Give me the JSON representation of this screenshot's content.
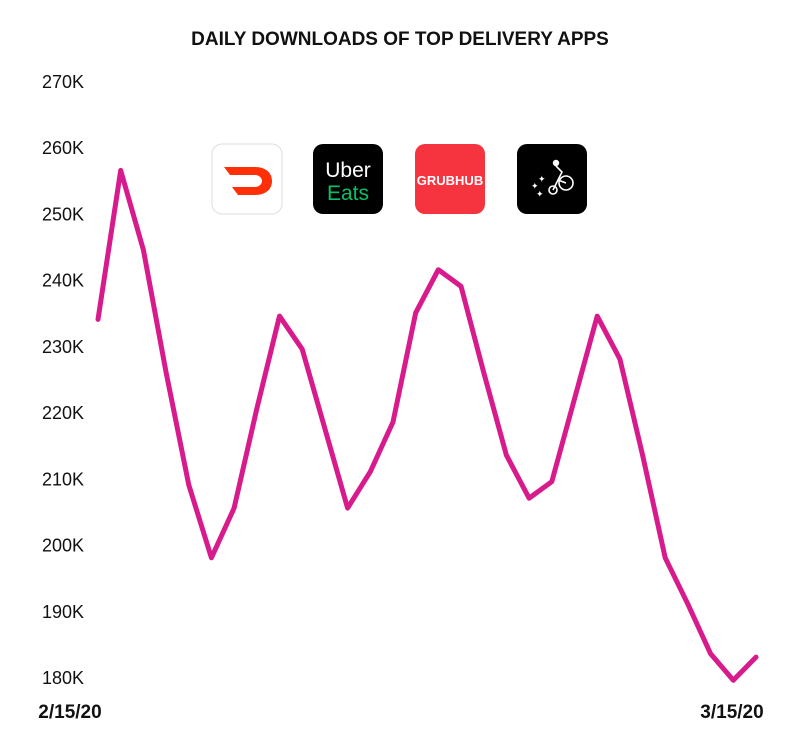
{
  "chart_data": {
    "type": "line",
    "title": "DAILY DOWNLOADS OF TOP DELIVERY APPS",
    "xlabel": "",
    "ylabel": "",
    "x_tick_labels": [
      "2/15/20",
      "3/15/20"
    ],
    "x_start": "2/15/20",
    "x_end": "3/15/20",
    "y_tick_labels": [
      "270K",
      "260K",
      "250K",
      "240K",
      "230K",
      "220K",
      "210K",
      "200K",
      "190K",
      "180K"
    ],
    "y_ticks": [
      270000,
      260000,
      250000,
      240000,
      230000,
      220000,
      210000,
      200000,
      190000,
      180000
    ],
    "ylim": [
      180000,
      270000
    ],
    "grid": false,
    "series": [
      {
        "color": "#d81b8c",
        "values": [
          234000,
          256500,
          244500,
          226000,
          209000,
          198000,
          205500,
          220500,
          234500,
          229500,
          217500,
          205500,
          211000,
          218500,
          235000,
          241500,
          239000,
          226000,
          213500,
          207000,
          209500,
          222000,
          234500,
          228000,
          213500,
          198000,
          191000,
          183500,
          179500,
          183000
        ]
      }
    ]
  },
  "logos": [
    {
      "name": "doordash-logo",
      "bg": "#ffffff",
      "fg": "#ff3008"
    },
    {
      "name": "uber-eats-logo",
      "bg": "#000000",
      "line1": "Uber",
      "line2": "Eats",
      "fg1": "#ffffff",
      "fg2": "#06c167"
    },
    {
      "name": "grubhub-logo",
      "bg": "#f63440",
      "text": "GRUBHUB",
      "fg": "#ffffff"
    },
    {
      "name": "postmates-logo",
      "bg": "#000000",
      "fg": "#ffffff"
    }
  ]
}
